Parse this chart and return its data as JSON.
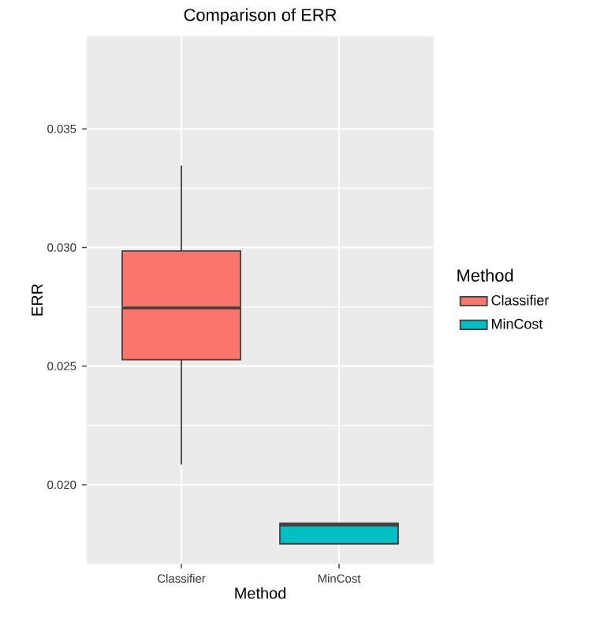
{
  "chart_data": {
    "type": "box",
    "title": "Comparison of ERR",
    "xlabel": "Method",
    "ylabel": "ERR",
    "legend_title": "Method",
    "categories": [
      "Classifier",
      "MinCost"
    ],
    "series": [
      {
        "name": "Classifier",
        "color": "#f8766d",
        "boxes": [
          {
            "low": 0.02085,
            "q1": 0.02527,
            "median": 0.02745,
            "q3": 0.02985,
            "high": 0.03345
          },
          null
        ]
      },
      {
        "name": "MinCost",
        "color": "#00bfc4",
        "boxes": [
          null,
          {
            "low": 0.01751,
            "q1": 0.01751,
            "median": 0.0183,
            "q3": 0.01838,
            "high": 0.01838
          }
        ]
      }
    ],
    "ylim": [
      0.01667,
      0.0389
    ],
    "yticks": [
      {
        "value": 0.02,
        "label": "0.020"
      },
      0.025,
      {
        "value": 0.03,
        "label": "0.030"
      },
      0.035
    ],
    "grid": true,
    "legend": "right"
  }
}
